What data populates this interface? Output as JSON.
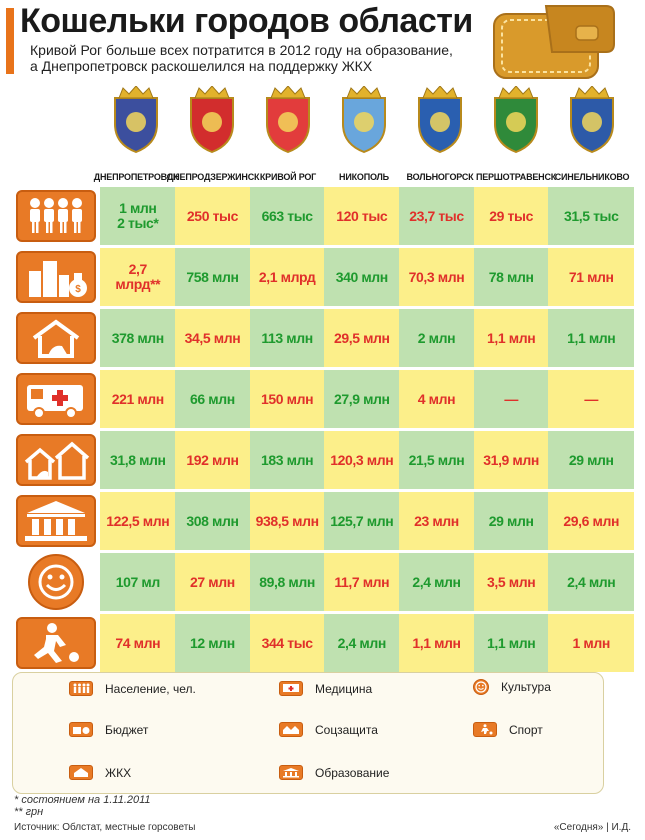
{
  "header": {
    "title": "Кошельки городов области",
    "subtitle_line1": "Кривой Рог больше всех потратится в 2012 году на образование,",
    "subtitle_line2": "а Днепропетровск раскошелился на поддержку ЖКХ",
    "accent_color": "#e8731a"
  },
  "cities": [
    {
      "name": "ДНЕПРОПЕТРОВСК",
      "coat_color": "#3c4f9e"
    },
    {
      "name": "ДНЕПРОДЗЕРЖИНСК",
      "coat_color": "#d22d2d"
    },
    {
      "name": "КРИВОЙ РОГ",
      "coat_color": "#e23c3c"
    },
    {
      "name": "НИКОПОЛЬ",
      "coat_color": "#69a6dc"
    },
    {
      "name": "ВОЛЬНОГОРСК",
      "coat_color": "#2a5fb0"
    },
    {
      "name": "ПЕРШОТРАВЕНСК",
      "coat_color": "#2f8a3a"
    },
    {
      "name": "СИНЕЛЬНИКОВО",
      "coat_color": "#2d5aa8"
    }
  ],
  "rows": [
    {
      "category": "population",
      "icon": "people-icon",
      "values": [
        "1 млн\n2 тыс*",
        "250 тыс",
        "663 тыс",
        "120 тыс",
        "23,7 тыс",
        "29 тыс",
        "31,5 тыс"
      ]
    },
    {
      "category": "budget",
      "icon": "money-bag-icon",
      "values": [
        "2,7\nмлрд**",
        "758 млн",
        "2,1 млрд",
        "340 млн",
        "70,3 млн",
        "78 млн",
        "71 млн"
      ]
    },
    {
      "category": "housing",
      "icon": "house-icon",
      "values": [
        "378 млн",
        "34,5 млн",
        "113 млн",
        "29,5 млн",
        "2 млн",
        "1,1 млн",
        "1,1 млн"
      ]
    },
    {
      "category": "medicine",
      "icon": "ambulance-icon",
      "values": [
        "221 млн",
        "66 млн",
        "150 млн",
        "27,9 млн",
        "4 млн",
        "—",
        "—"
      ]
    },
    {
      "category": "social",
      "icon": "social-houses-icon",
      "values": [
        "31,8 млн",
        "192 млн",
        "183 млн",
        "120,3 млн",
        "21,5 млн",
        "31,9 млн",
        "29 млн"
      ]
    },
    {
      "category": "education",
      "icon": "building-icon",
      "values": [
        "122,5 млн",
        "308 млн",
        "938,5 млн",
        "125,7 млн",
        "23 млн",
        "29 млн",
        "29,6 млн"
      ]
    },
    {
      "category": "culture",
      "icon": "smiley-icon",
      "values": [
        "107 мл",
        "27 млн",
        "89,8 млн",
        "11,7 млн",
        "2,4 млн",
        "3,5 млн",
        "2,4 млн"
      ]
    },
    {
      "category": "sport",
      "icon": "football-player-icon",
      "values": [
        "74 млн",
        "12 млн",
        "344 тыс",
        "2,4 млн",
        "1,1 млн",
        "1,1 млн",
        "1 млн"
      ]
    }
  ],
  "legend": {
    "population": "Население, чел.",
    "budget": "Бюджет",
    "housing": "ЖКХ",
    "medicine": "Медицина",
    "social": "Соцзащита",
    "education": "Образование",
    "culture": "Культура",
    "sport": "Спорт"
  },
  "notes": {
    "note1": "* состоянием на 1.11.2011",
    "note2": "** грн"
  },
  "source": "Источник: Облстат, местные горсоветы",
  "credit": "«Сегодня» | И.Д."
}
